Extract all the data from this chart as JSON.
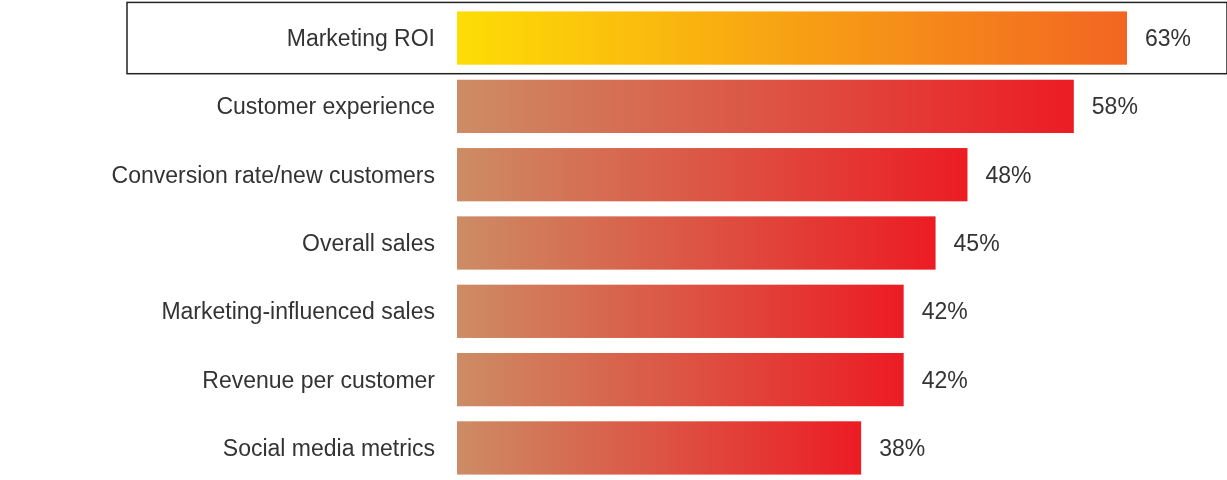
{
  "chart_data": {
    "type": "bar",
    "orientation": "horizontal",
    "categories": [
      "Marketing ROI",
      "Customer experience",
      "Conversion rate/new customers",
      "Overall sales",
      "Marketing-influenced sales",
      "Revenue per customer",
      "Social media metrics"
    ],
    "values": [
      63,
      58,
      48,
      45,
      42,
      42,
      38
    ],
    "value_labels": [
      "63%",
      "58%",
      "48%",
      "45%",
      "42%",
      "42%",
      "38%"
    ],
    "colors": [
      "#f26522",
      "#ec1c24",
      "#ec1c24",
      "#ec1c24",
      "#ec1c24",
      "#ec1c24",
      "#ec1c24"
    ]
  }
}
